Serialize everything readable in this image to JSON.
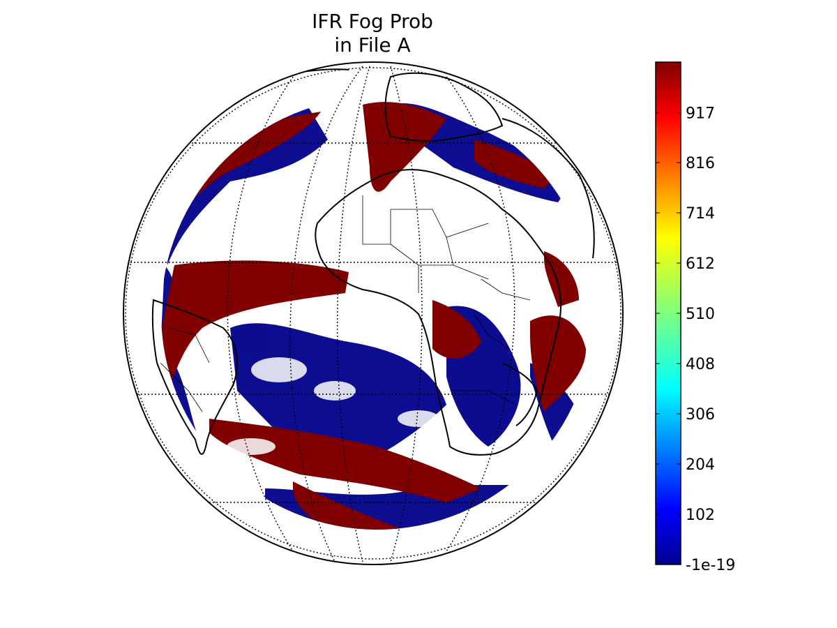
{
  "title": {
    "line1": "IFR Fog Prob",
    "line2": "in File A"
  },
  "map": {
    "projection": "geostationary full disk",
    "grid": true,
    "colors": {
      "high": "#800000",
      "low": "#00008b",
      "no_data": "#ffffff",
      "outline": "#000000"
    }
  },
  "colorbar": {
    "colormap": "jet",
    "range": [
      -1e-19,
      1020
    ],
    "ticks": [
      {
        "value": -1e-19,
        "label": "-1e-19"
      },
      {
        "value": 102,
        "label": "102"
      },
      {
        "value": 204,
        "label": "204"
      },
      {
        "value": 306,
        "label": "306"
      },
      {
        "value": 408,
        "label": "408"
      },
      {
        "value": 510,
        "label": "510"
      },
      {
        "value": 612,
        "label": "612"
      },
      {
        "value": 714,
        "label": "714"
      },
      {
        "value": 816,
        "label": "816"
      },
      {
        "value": 917,
        "label": "917"
      }
    ]
  }
}
